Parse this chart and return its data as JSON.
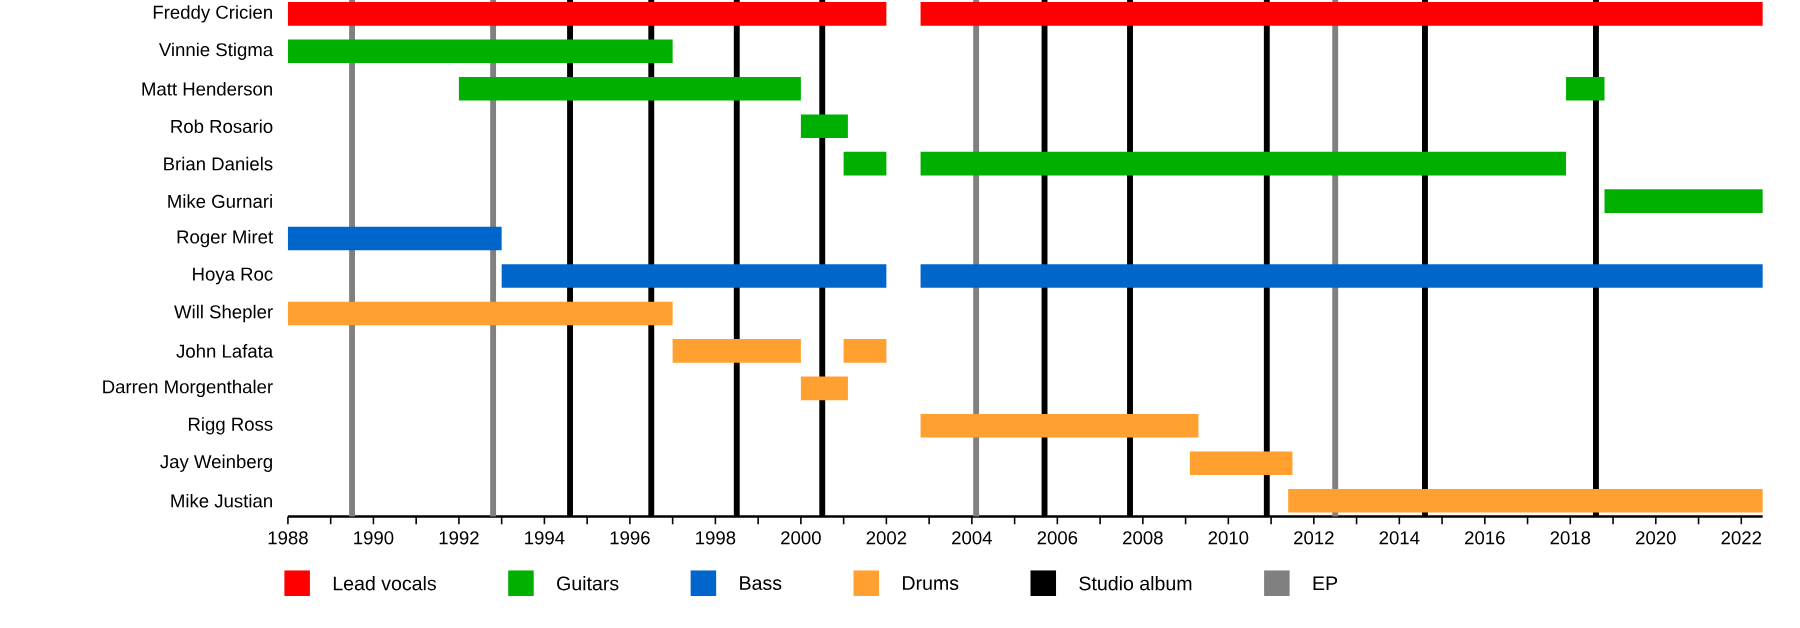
{
  "chart_data": {
    "type": "bar",
    "orientation": "horizontal",
    "categories": [
      "Freddy Cricien",
      "Vinnie Stigma",
      "Matt Henderson",
      "Rob Rosario",
      "Brian Daniels",
      "Mike Gurnari",
      "Roger Miret",
      "Hoya Roc",
      "Will Shepler",
      "John Lafata",
      "Darren Morgenthaler",
      "Rigg Ross",
      "Jay Weinberg",
      "Mike Justian"
    ],
    "series": [
      {
        "name": "Lead vocals",
        "color": "#ff0000",
        "base": [
          1988,
          null,
          null,
          null,
          null,
          null,
          null,
          null,
          null,
          null,
          null,
          null,
          null,
          null
        ],
        "values": [
          14,
          null,
          null,
          null,
          null,
          null,
          null,
          null,
          null,
          null,
          null,
          null,
          null,
          null
        ]
      },
      {
        "color": "#ff0000",
        "base": [
          2002.8,
          null,
          null,
          null,
          null,
          null,
          null,
          null,
          null,
          null,
          null,
          null,
          null,
          null
        ],
        "values": [
          19.7,
          null,
          null,
          null,
          null,
          null,
          null,
          null,
          null,
          null,
          null,
          null,
          null,
          null
        ]
      },
      {
        "name": "Guitars",
        "color": "#00b000",
        "base": [
          null,
          1988,
          1992,
          2000,
          2001,
          2018.8,
          null,
          null,
          null,
          null,
          null,
          null,
          null,
          null
        ],
        "values": [
          null,
          9,
          8,
          1.1,
          1,
          3.7,
          null,
          null,
          null,
          null,
          null,
          null,
          null,
          null
        ]
      },
      {
        "color": "#00b000",
        "base": [
          null,
          null,
          2017.9,
          null,
          2002.8,
          null,
          null,
          null,
          null,
          null,
          null,
          null,
          null,
          null
        ],
        "values": [
          null,
          null,
          0.9,
          null,
          15.1,
          null,
          null,
          null,
          null,
          null,
          null,
          null,
          null,
          null
        ]
      },
      {
        "name": "Bass",
        "color": "#0066cc",
        "base": [
          null,
          null,
          null,
          null,
          null,
          null,
          1988,
          1993,
          null,
          null,
          null,
          null,
          null,
          null
        ],
        "values": [
          null,
          null,
          null,
          null,
          null,
          null,
          5,
          9,
          null,
          null,
          null,
          null,
          null,
          null
        ]
      },
      {
        "color": "#0066cc",
        "base": [
          null,
          null,
          null,
          null,
          null,
          null,
          null,
          2002.8,
          null,
          null,
          null,
          null,
          null,
          null
        ],
        "values": [
          null,
          null,
          null,
          null,
          null,
          null,
          null,
          19.7,
          null,
          null,
          null,
          null,
          null,
          null
        ]
      },
      {
        "name": "Drums",
        "color": "#ffa030",
        "base": [
          null,
          null,
          null,
          null,
          null,
          null,
          null,
          null,
          1988,
          1997,
          2000,
          2002.8,
          2009.1,
          2011.4
        ],
        "values": [
          null,
          null,
          null,
          null,
          null,
          null,
          null,
          null,
          9,
          3,
          1.1,
          6.5,
          2.4,
          11.1
        ]
      },
      {
        "color": "#ffa030",
        "base": [
          null,
          null,
          null,
          null,
          null,
          null,
          null,
          null,
          null,
          2001,
          null,
          null,
          null,
          null
        ],
        "values": [
          null,
          null,
          null,
          null,
          null,
          null,
          null,
          null,
          null,
          1,
          null,
          null,
          null,
          null
        ]
      }
    ],
    "xlim": [
      1988,
      2022.5
    ],
    "xticks": [
      1988,
      {
        "value": 1989,
        "label": null
      },
      1990,
      {
        "value": 1991,
        "label": null
      },
      1992,
      {
        "value": 1993,
        "label": null
      },
      1994,
      {
        "value": 1995,
        "label": null
      },
      1996,
      {
        "value": 1997,
        "label": null
      },
      1998,
      {
        "value": 1999,
        "label": null
      },
      2000,
      {
        "value": 2001,
        "label": null
      },
      2002,
      {
        "value": 2003,
        "label": null
      },
      2004,
      {
        "value": 2005,
        "label": null
      },
      2006,
      {
        "value": 2007,
        "label": null
      },
      2008,
      {
        "value": 2009,
        "label": null
      },
      2010,
      {
        "value": 2011,
        "label": null
      },
      2012,
      {
        "value": 2013,
        "label": null
      },
      2014,
      {
        "value": 2015,
        "label": null
      },
      2016,
      {
        "value": 2017,
        "label": null
      },
      2018,
      {
        "value": 2019,
        "label": null
      },
      2020,
      {
        "value": 2021,
        "label": null
      },
      2022
    ],
    "ref_lines": [
      {
        "axis": "x",
        "value": 1994.6,
        "label": "Studio album",
        "color": "#000000"
      },
      {
        "axis": "x",
        "value": 1989.5,
        "label": "EP",
        "color": "#808080"
      },
      {
        "axis": "x",
        "value": 1992.8,
        "color": "#808080"
      },
      {
        "axis": "x",
        "value": 2004.1,
        "color": "#808080"
      },
      {
        "axis": "x",
        "value": 2012.5,
        "color": "#808080"
      },
      {
        "axis": "x",
        "value": 1996.5,
        "color": "#000000"
      },
      {
        "axis": "x",
        "value": 1998.5,
        "color": "#000000"
      },
      {
        "axis": "x",
        "value": 2000.5,
        "color": "#000000"
      },
      {
        "axis": "x",
        "value": 2005.7,
        "color": "#000000"
      },
      {
        "axis": "x",
        "value": 2007.7,
        "color": "#000000"
      },
      {
        "axis": "x",
        "value": 2010.9,
        "color": "#000000"
      },
      {
        "axis": "x",
        "value": 2014.6,
        "color": "#000000"
      },
      {
        "axis": "x",
        "value": 2018.6,
        "color": "#000000"
      }
    ],
    "legend": "bottom"
  }
}
